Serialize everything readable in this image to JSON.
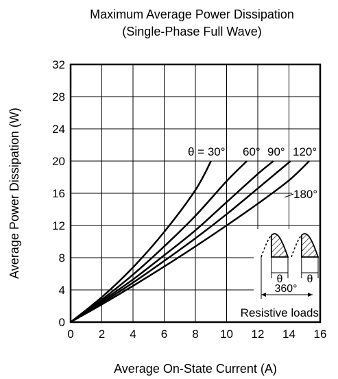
{
  "chart_data": {
    "type": "line",
    "title": "Maximum Average Power Dissipation",
    "subtitle": "(Single-Phase Full Wave)",
    "xlabel": "Average On-State Current  (A)",
    "ylabel": "Average Power Dissipation  (W)",
    "xlim": [
      0,
      16
    ],
    "ylim": [
      0,
      32
    ],
    "xticks": [
      "0",
      "2",
      "4",
      "6",
      "8",
      "10",
      "12",
      "14",
      "16"
    ],
    "yticks": [
      "0",
      "4",
      "8",
      "12",
      "16",
      "20",
      "24",
      "28",
      "32"
    ],
    "grid": true,
    "series": [
      {
        "name": "θ = 30°",
        "x": [
          0,
          2,
          4,
          6,
          8,
          9.0
        ],
        "y": [
          0,
          3.1,
          6.8,
          11.2,
          16.4,
          20
        ]
      },
      {
        "name": "60°",
        "x": [
          0,
          2,
          4,
          6,
          8,
          10,
          11.3
        ],
        "y": [
          0,
          2.8,
          5.9,
          9.4,
          13.2,
          17.5,
          20
        ]
      },
      {
        "name": "90°",
        "x": [
          0,
          2,
          4,
          6,
          8,
          10,
          12,
          13.0
        ],
        "y": [
          0,
          2.6,
          5.3,
          8.3,
          11.4,
          14.9,
          18.4,
          20
        ]
      },
      {
        "name": "120°",
        "x": [
          0,
          2,
          4,
          6,
          8,
          10,
          12,
          14.1
        ],
        "y": [
          0,
          2.4,
          4.9,
          7.6,
          10.4,
          13.4,
          16.6,
          20
        ]
      },
      {
        "name": "180°",
        "x": [
          0,
          2,
          4,
          6,
          8,
          10,
          12,
          14,
          15.3
        ],
        "y": [
          0,
          2.2,
          4.5,
          6.9,
          9.4,
          12.0,
          14.7,
          17.6,
          20
        ]
      }
    ],
    "annotations": {
      "theta_symbol": "θ",
      "full_period": "360°",
      "load_note": "Resistive loads"
    }
  }
}
